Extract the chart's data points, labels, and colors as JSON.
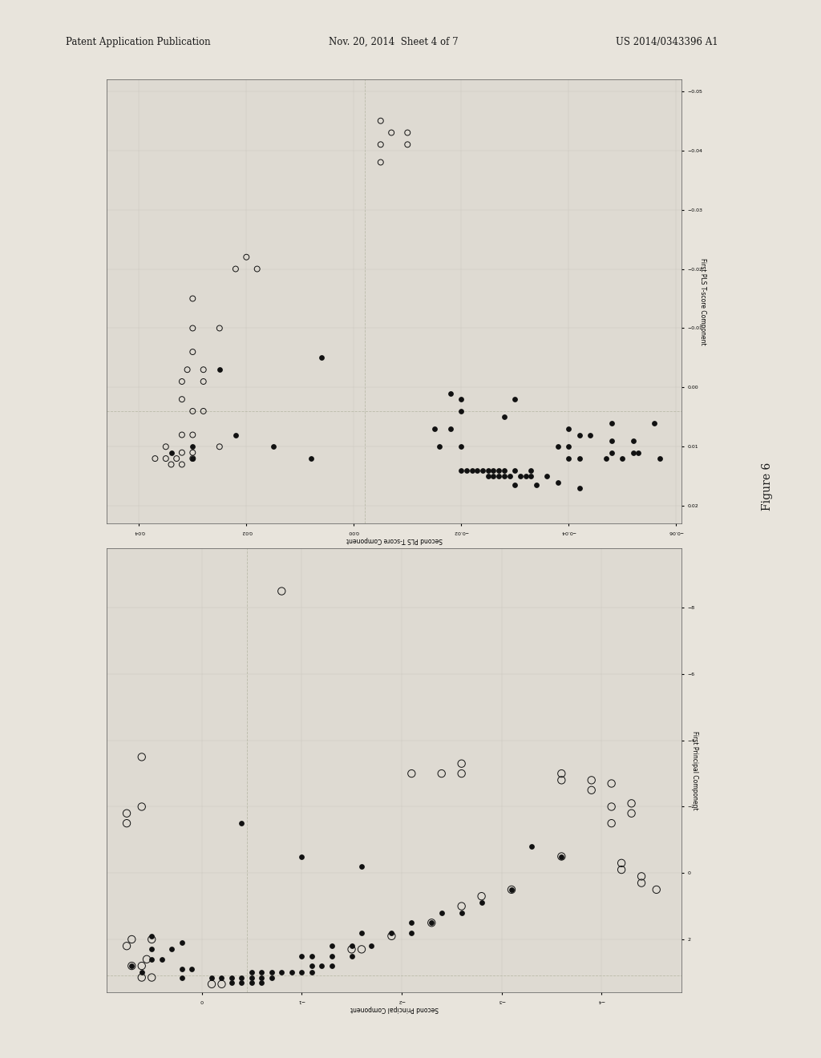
{
  "header_left": "Patent Application Publication",
  "header_mid": "Nov. 20, 2014  Sheet 4 of 7",
  "header_right": "US 2014/0343396 A1",
  "figure_label": "Figure 6",
  "page_bg": "#e8e4dc",
  "plot_bg": "#dedad2",
  "top_plot": {
    "title": "",
    "xlabel": "Second PLS T-score Component",
    "ylabel": "First PLS T-score Component",
    "xlim": [
      -0.061,
      0.046
    ],
    "ylim": [
      -0.052,
      0.023
    ],
    "crosshair_x": -0.002,
    "crosshair_y": 0.004,
    "filled_points": [
      [
        -0.042,
        0.017
      ],
      [
        -0.038,
        0.016
      ],
      [
        -0.034,
        0.0165
      ],
      [
        -0.03,
        0.0165
      ],
      [
        -0.036,
        0.015
      ],
      [
        -0.033,
        0.015
      ],
      [
        -0.032,
        0.015
      ],
      [
        -0.031,
        0.015
      ],
      [
        -0.029,
        0.015
      ],
      [
        -0.028,
        0.015
      ],
      [
        -0.027,
        0.015
      ],
      [
        -0.026,
        0.015
      ],
      [
        -0.025,
        0.015
      ],
      [
        -0.033,
        0.014
      ],
      [
        -0.03,
        0.014
      ],
      [
        -0.028,
        0.014
      ],
      [
        -0.027,
        0.014
      ],
      [
        -0.026,
        0.014
      ],
      [
        -0.025,
        0.014
      ],
      [
        -0.024,
        0.014
      ],
      [
        -0.023,
        0.014
      ],
      [
        -0.022,
        0.014
      ],
      [
        -0.021,
        0.014
      ],
      [
        -0.02,
        0.014
      ],
      [
        -0.05,
        0.012
      ],
      [
        -0.047,
        0.012
      ],
      [
        -0.042,
        0.012
      ],
      [
        -0.04,
        0.012
      ],
      [
        -0.053,
        0.011
      ],
      [
        -0.052,
        0.011
      ],
      [
        -0.048,
        0.011
      ],
      [
        -0.04,
        0.01
      ],
      [
        -0.038,
        0.01
      ],
      [
        -0.052,
        0.009
      ],
      [
        -0.048,
        0.009
      ],
      [
        -0.044,
        0.008
      ],
      [
        -0.042,
        0.008
      ],
      [
        -0.04,
        0.007
      ],
      [
        -0.056,
        0.006
      ],
      [
        -0.048,
        0.006
      ],
      [
        -0.028,
        0.005
      ],
      [
        -0.02,
        0.004
      ],
      [
        -0.02,
        0.01
      ],
      [
        -0.016,
        0.01
      ],
      [
        -0.018,
        0.007
      ],
      [
        -0.015,
        0.007
      ],
      [
        -0.03,
        0.002
      ],
      [
        -0.02,
        0.002
      ],
      [
        -0.018,
        0.001
      ],
      [
        0.008,
        0.012
      ],
      [
        0.015,
        0.01
      ],
      [
        0.022,
        0.008
      ],
      [
        0.03,
        0.012
      ],
      [
        0.034,
        0.011
      ],
      [
        0.03,
        0.01
      ],
      [
        0.006,
        -0.005
      ],
      [
        0.025,
        -0.003
      ],
      [
        -0.057,
        0.012
      ]
    ],
    "open_points": [
      [
        0.032,
        0.013
      ],
      [
        0.034,
        0.013
      ],
      [
        0.03,
        0.012
      ],
      [
        0.033,
        0.012
      ],
      [
        0.035,
        0.012
      ],
      [
        0.037,
        0.012
      ],
      [
        0.03,
        0.011
      ],
      [
        0.032,
        0.011
      ],
      [
        0.025,
        0.01
      ],
      [
        0.03,
        0.008
      ],
      [
        0.032,
        0.008
      ],
      [
        0.028,
        0.004
      ],
      [
        0.03,
        0.004
      ],
      [
        0.032,
        0.002
      ],
      [
        0.028,
        -0.001
      ],
      [
        0.032,
        -0.001
      ],
      [
        0.028,
        -0.003
      ],
      [
        0.031,
        -0.003
      ],
      [
        0.025,
        -0.01
      ],
      [
        0.03,
        -0.01
      ],
      [
        0.03,
        -0.015
      ],
      [
        0.035,
        0.01
      ],
      [
        0.022,
        -0.02
      ],
      [
        0.018,
        -0.02
      ],
      [
        0.02,
        -0.022
      ],
      [
        -0.005,
        -0.038
      ],
      [
        -0.005,
        -0.041
      ],
      [
        -0.01,
        -0.041
      ],
      [
        -0.007,
        -0.043
      ],
      [
        -0.01,
        -0.043
      ],
      [
        -0.005,
        -0.045
      ],
      [
        0.03,
        -0.006
      ]
    ]
  },
  "bottom_plot": {
    "xlabel": "Second Principal Component",
    "ylabel": "First Principal Component",
    "xlim": [
      -4.8,
      0.95
    ],
    "ylim": [
      -9.8,
      3.6
    ],
    "crosshair_x": -0.45,
    "crosshair_y": 3.1,
    "filled_points": [
      [
        -0.6,
        3.3
      ],
      [
        -0.5,
        3.3
      ],
      [
        -0.4,
        3.3
      ],
      [
        -0.3,
        3.3
      ],
      [
        -0.7,
        3.15
      ],
      [
        -0.6,
        3.15
      ],
      [
        -0.5,
        3.15
      ],
      [
        -0.4,
        3.15
      ],
      [
        -0.3,
        3.15
      ],
      [
        -0.2,
        3.15
      ],
      [
        -0.1,
        3.15
      ],
      [
        -1.1,
        3.0
      ],
      [
        -1.0,
        3.0
      ],
      [
        -0.9,
        3.0
      ],
      [
        -0.8,
        3.0
      ],
      [
        -0.7,
        3.0
      ],
      [
        -0.6,
        3.0
      ],
      [
        -0.5,
        3.0
      ],
      [
        -1.3,
        2.8
      ],
      [
        -1.2,
        2.8
      ],
      [
        -1.1,
        2.8
      ],
      [
        -1.5,
        2.5
      ],
      [
        -1.3,
        2.5
      ],
      [
        -1.1,
        2.5
      ],
      [
        -1.0,
        2.5
      ],
      [
        -1.7,
        2.2
      ],
      [
        -1.5,
        2.2
      ],
      [
        -1.3,
        2.2
      ],
      [
        -2.1,
        1.8
      ],
      [
        -1.9,
        1.8
      ],
      [
        -1.6,
        1.8
      ],
      [
        -2.3,
        1.5
      ],
      [
        -2.1,
        1.5
      ],
      [
        -2.6,
        1.2
      ],
      [
        -2.4,
        1.2
      ],
      [
        -2.8,
        0.9
      ],
      [
        -3.1,
        0.5
      ],
      [
        -3.6,
        -0.5
      ],
      [
        -3.3,
        -0.8
      ],
      [
        -1.6,
        -0.2
      ],
      [
        -1.0,
        -0.5
      ],
      [
        0.1,
        2.9
      ],
      [
        0.2,
        2.9
      ],
      [
        0.4,
        2.6
      ],
      [
        0.5,
        2.6
      ],
      [
        0.3,
        2.3
      ],
      [
        0.5,
        2.3
      ],
      [
        0.2,
        2.1
      ],
      [
        0.5,
        1.9
      ],
      [
        0.6,
        3.0
      ],
      [
        0.7,
        2.8
      ],
      [
        -0.4,
        -1.5
      ],
      [
        0.2,
        3.15
      ]
    ],
    "open_points": [
      [
        -0.2,
        3.35
      ],
      [
        -0.1,
        3.35
      ],
      [
        0.5,
        3.15
      ],
      [
        0.6,
        3.15
      ],
      [
        0.6,
        2.8
      ],
      [
        0.7,
        2.8
      ],
      [
        0.55,
        2.6
      ],
      [
        0.5,
        2.0
      ],
      [
        0.7,
        2.0
      ],
      [
        0.75,
        2.2
      ],
      [
        -1.5,
        2.3
      ],
      [
        -1.6,
        2.3
      ],
      [
        -1.9,
        1.9
      ],
      [
        -2.3,
        1.5
      ],
      [
        -2.6,
        1.0
      ],
      [
        -2.8,
        0.7
      ],
      [
        -3.1,
        0.5
      ],
      [
        -3.6,
        -0.5
      ],
      [
        -4.1,
        -1.5
      ],
      [
        -4.3,
        -1.8
      ],
      [
        -4.1,
        -2.0
      ],
      [
        -4.3,
        -2.1
      ],
      [
        -3.9,
        -2.5
      ],
      [
        -4.1,
        -2.7
      ],
      [
        -3.9,
        -2.8
      ],
      [
        -3.6,
        -2.8
      ],
      [
        -3.6,
        -3.0
      ],
      [
        -2.6,
        -3.0
      ],
      [
        -2.4,
        -3.0
      ],
      [
        -2.1,
        -3.0
      ],
      [
        -2.6,
        -3.3
      ],
      [
        0.6,
        -2.0
      ],
      [
        0.75,
        -1.5
      ],
      [
        0.75,
        -1.8
      ],
      [
        0.6,
        -3.5
      ],
      [
        -4.55,
        0.5
      ],
      [
        -4.4,
        0.3
      ],
      [
        -4.4,
        0.1
      ],
      [
        -4.2,
        -0.1
      ],
      [
        -4.2,
        -0.3
      ],
      [
        -0.8,
        -8.5
      ]
    ]
  }
}
